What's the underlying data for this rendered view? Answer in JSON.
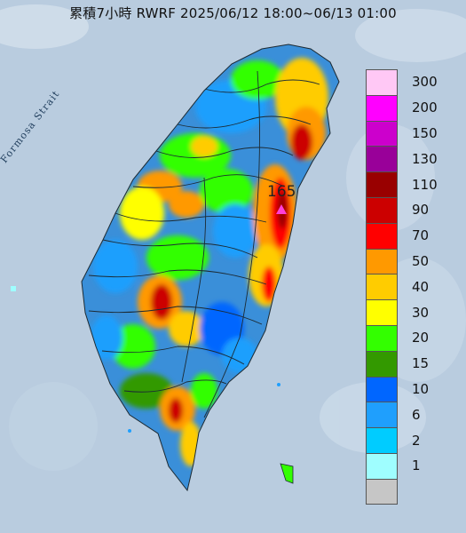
{
  "title": "累積7小時 RWRF 2025/06/12 18:00~06/13 01:00",
  "strait_label": "Formosa Strait",
  "max": {
    "value": "165",
    "marker_color": "#ff3fd9"
  },
  "colors": {
    "sea": "#b9ccdf",
    "land_base": "#3a8fd9",
    "border": "#1c2a33"
  },
  "legend": {
    "items": [
      {
        "label": "300",
        "color": "#ffc8f5"
      },
      {
        "label": "200",
        "color": "#ff00ff"
      },
      {
        "label": "150",
        "color": "#cc00cc"
      },
      {
        "label": "130",
        "color": "#990099"
      },
      {
        "label": "110",
        "color": "#990000"
      },
      {
        "label": "90",
        "color": "#cc0000"
      },
      {
        "label": "70",
        "color": "#ff0000"
      },
      {
        "label": "50",
        "color": "#ff9900"
      },
      {
        "label": "40",
        "color": "#ffcc00"
      },
      {
        "label": "30",
        "color": "#ffff00"
      },
      {
        "label": "20",
        "color": "#33ff00"
      },
      {
        "label": "15",
        "color": "#339900"
      },
      {
        "label": "10",
        "color": "#0066ff"
      },
      {
        "label": "6",
        "color": "#1f9ffd"
      },
      {
        "label": "2",
        "color": "#00ccff"
      },
      {
        "label": "1",
        "color": "#9ffeff"
      },
      {
        "label": "",
        "color": "#c6c6c6"
      }
    ]
  }
}
